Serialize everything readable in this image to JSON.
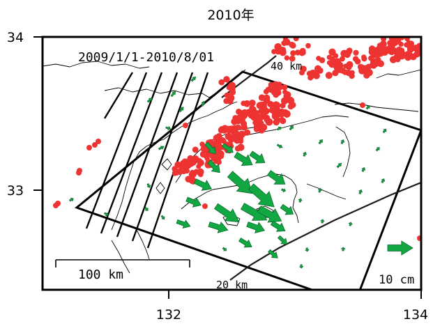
{
  "title": "2010年",
  "date_range": "2009/1/1-2010/8/01",
  "axes": {
    "x_ticks": [
      "132",
      "134"
    ],
    "y_ticks": [
      "34",
      "33"
    ]
  },
  "contour_labels": {
    "deep": "40 km",
    "shallow": "20 km"
  },
  "scale_bar_label": "100 km",
  "reference_arrow_label": "10 cm",
  "colors": {
    "earthquake": "#ee3333",
    "displacement_arrow": "#11a844",
    "arrow_outline": "#0b6a2a",
    "coastline": "#000000",
    "frame": "#000000"
  },
  "extent": {
    "lon": [
      131.0,
      134.0
    ],
    "lat": [
      32.4,
      34.0
    ]
  }
}
